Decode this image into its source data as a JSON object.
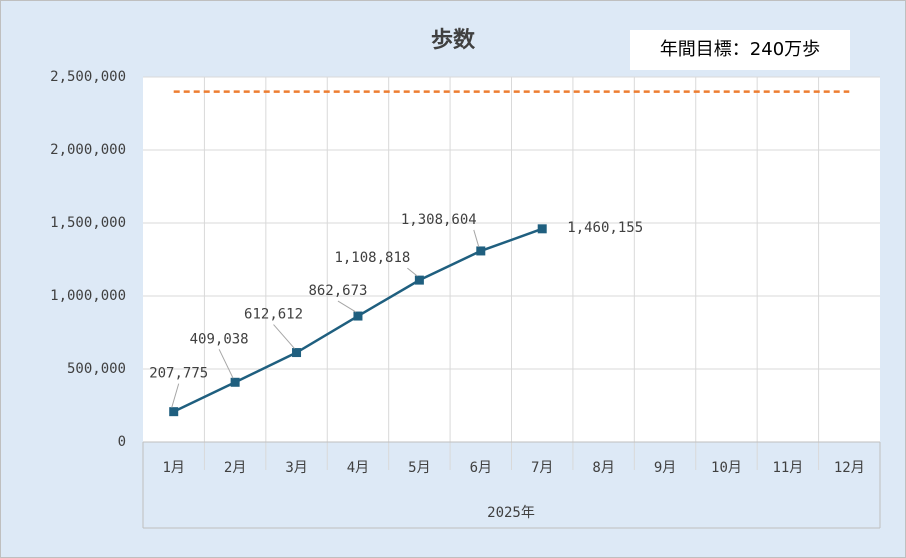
{
  "chart_data": {
    "type": "line",
    "title": "歩数",
    "annotation": "年間目標：240万歩",
    "x_label": "2025年",
    "categories": [
      "1月",
      "2月",
      "3月",
      "4月",
      "5月",
      "6月",
      "7月",
      "8月",
      "9月",
      "10月",
      "11月",
      "12月"
    ],
    "series": [
      {
        "color": "#1f5f7f",
        "marker": "square",
        "values": [
          207775,
          409038,
          612612,
          862673,
          1108818,
          1308604,
          1460155,
          null,
          null,
          null,
          null,
          null
        ],
        "value_labels": [
          "207,775",
          "409,038",
          "612,612",
          "862,673",
          "1,108,818",
          "1,308,604",
          "1,460,155",
          null,
          null,
          null,
          null,
          null
        ]
      },
      {
        "color": "#ed7d31",
        "dashed": true,
        "values": [
          2400000,
          2400000,
          2400000,
          2400000,
          2400000,
          2400000,
          2400000,
          2400000,
          2400000,
          2400000,
          2400000,
          2400000
        ]
      }
    ],
    "ylim": [
      0,
      2500000
    ],
    "yticks": [
      0,
      {
        "value": 500000,
        "label": "500,000"
      },
      {
        "value": 1000000,
        "label": "1,000,000"
      },
      {
        "value": 1500000,
        "label": "1,500,000"
      },
      {
        "value": 2000000,
        "label": "2,000,000"
      },
      {
        "value": 2500000,
        "label": "2,500,000"
      }
    ],
    "grid": true
  }
}
